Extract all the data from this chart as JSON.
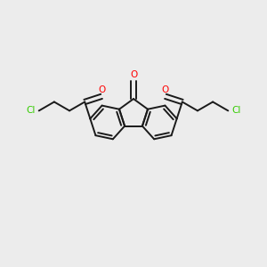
{
  "background_color": "#ececec",
  "bond_color": "#1a1a1a",
  "oxygen_color": "#ff0000",
  "chlorine_color": "#33cc00",
  "line_width": 1.4,
  "figsize": [
    3.0,
    3.0
  ],
  "dpi": 100,
  "xlim": [
    -2.1,
    2.1
  ],
  "ylim": [
    -1.4,
    1.4
  ]
}
